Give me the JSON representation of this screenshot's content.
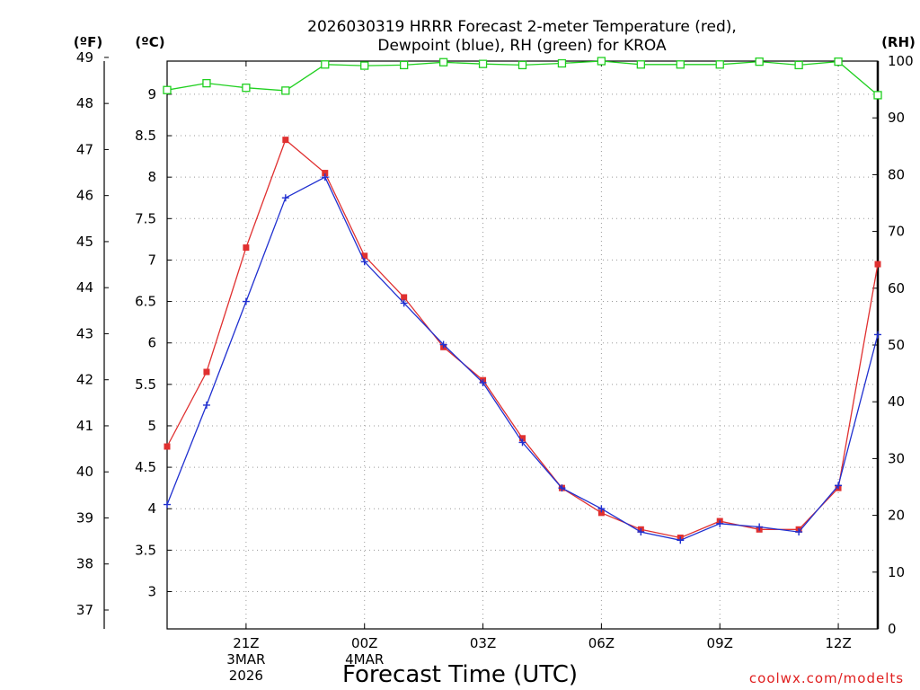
{
  "chart_data": {
    "type": "line",
    "title_line1": "2026030319 HRRR Forecast 2-meter Temperature (red),",
    "title_line2": "Dewpoint (blue), RH (green) for KROA",
    "xlabel": "Forecast Time (UTC)",
    "credit": "coolwx.com/modelts",
    "units": {
      "fahrenheit": "(ºF)",
      "celsius": "(ºC)",
      "rh": "(RH)"
    },
    "x_hours": [
      19,
      20,
      21,
      22,
      23,
      24,
      25,
      26,
      27,
      28,
      29,
      30,
      31,
      32,
      33,
      34,
      35,
      36,
      37
    ],
    "x_ticks": [
      {
        "hour": 21,
        "lines": [
          "21Z",
          "3MAR",
          "2026"
        ]
      },
      {
        "hour": 24,
        "lines": [
          "00Z",
          "4MAR"
        ]
      },
      {
        "hour": 27,
        "lines": [
          "03Z"
        ]
      },
      {
        "hour": 30,
        "lines": [
          "06Z"
        ]
      },
      {
        "hour": 33,
        "lines": [
          "09Z"
        ]
      },
      {
        "hour": 36,
        "lines": [
          "12Z"
        ]
      }
    ],
    "x_range": [
      19,
      37
    ],
    "celsius_range": [
      2.55,
      9.4
    ],
    "celsius_ticks": [
      "3",
      "3.5",
      "4",
      "4.5",
      "5",
      "5.5",
      "6",
      "6.5",
      "7",
      "7.5",
      "8",
      "8.5",
      "9"
    ],
    "fahrenheit_ticks": [
      "37",
      "38",
      "39",
      "40",
      "41",
      "42",
      "43",
      "44",
      "45",
      "46",
      "47",
      "48",
      "49"
    ],
    "rh_range": [
      0,
      100
    ],
    "rh_ticks": [
      "0",
      "10",
      "20",
      "30",
      "40",
      "50",
      "60",
      "70",
      "80",
      "90",
      "100"
    ],
    "grid": true,
    "series": [
      {
        "name": "Temperature",
        "color": "#e03030",
        "marker": "filled-square",
        "axis": "celsius",
        "values": [
          4.75,
          5.65,
          7.15,
          8.45,
          8.05,
          7.05,
          6.55,
          5.95,
          5.55,
          4.85,
          4.25,
          3.95,
          3.75,
          3.65,
          3.85,
          3.75,
          3.75,
          4.25,
          6.95
        ]
      },
      {
        "name": "Dewpoint",
        "color": "#2030d0",
        "marker": "plus",
        "axis": "celsius",
        "values": [
          4.05,
          5.25,
          6.5,
          7.75,
          8.0,
          6.98,
          6.48,
          5.98,
          5.52,
          4.8,
          4.25,
          4.0,
          3.72,
          3.62,
          3.82,
          3.78,
          3.72,
          4.28,
          6.1
        ]
      },
      {
        "name": "RH",
        "color": "#20d020",
        "marker": "open-square",
        "axis": "rh",
        "values": [
          94.9,
          96.1,
          95.3,
          94.8,
          99.4,
          99.2,
          99.3,
          99.8,
          99.5,
          99.3,
          99.6,
          100.0,
          99.4,
          99.4,
          99.4,
          99.9,
          99.3,
          99.9,
          94.0
        ]
      }
    ]
  }
}
